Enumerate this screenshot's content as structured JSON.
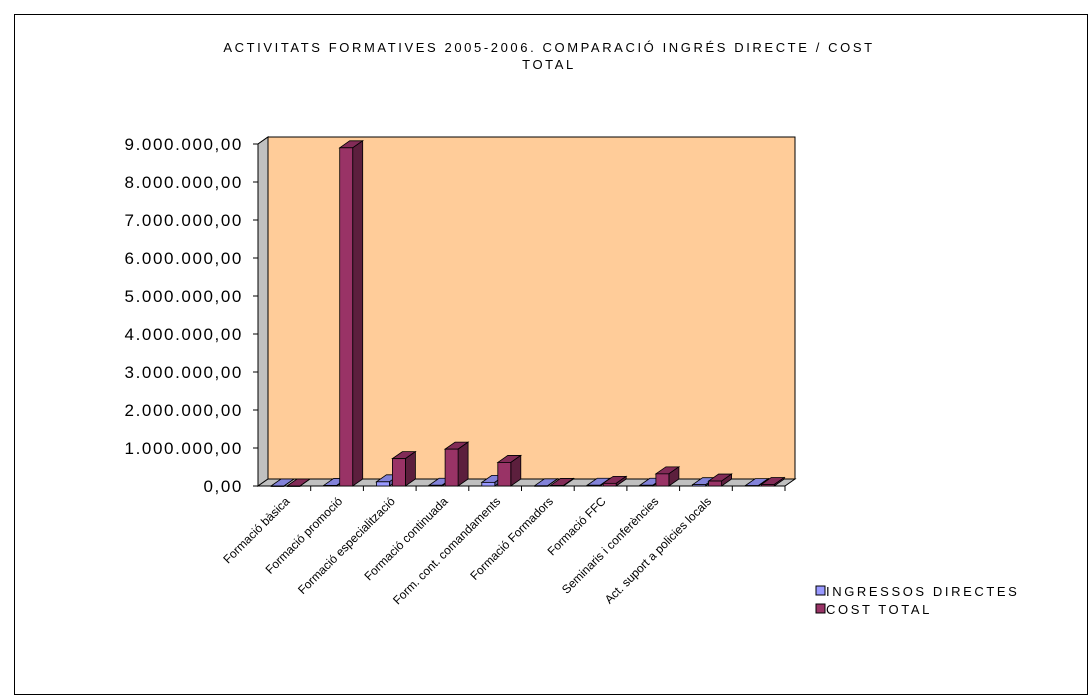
{
  "chart_data": {
    "type": "bar",
    "title_lines": [
      "ACTIVITATS FORMATIVES 2005-2006. COMPARACIÓ INGRÉS DIRECTE / COST",
      "TOTAL"
    ],
    "categories": [
      "Formació bàsica",
      "Formació promoció",
      "Formació especialització",
      "Formació continuada",
      "Form. cont. comandaments",
      "Formació Formadors",
      "Formació FFC",
      "Seminaris i conferències",
      "Act. suport a policies locals",
      ""
    ],
    "series": [
      {
        "name": "INGRESSOS DIRECTES",
        "color": "#9999ff",
        "values": [
          0,
          15000,
          110000,
          20000,
          95000,
          5000,
          20000,
          20000,
          35000,
          10000
        ]
      },
      {
        "name": "COST TOTAL",
        "color": "#993366",
        "values": [
          0,
          8900000,
          720000,
          970000,
          620000,
          15000,
          70000,
          320000,
          130000,
          40000
        ]
      }
    ],
    "ylim": [
      0,
      9000000
    ],
    "yticks": [
      "0,00",
      "1.000.000,00",
      "2.000.000,00",
      "3.000.000,00",
      "4.000.000,00",
      "5.000.000,00",
      "6.000.000,00",
      "7.000.000,00",
      "8.000.000,00",
      "9.000.000,00"
    ],
    "plot_background": "#ffcc99",
    "legend_position": "bottom-right",
    "three_d": true
  }
}
